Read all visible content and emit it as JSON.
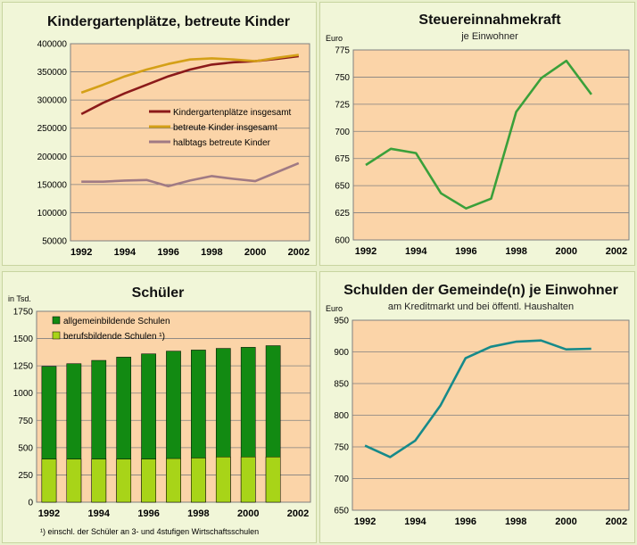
{
  "colors": {
    "plot_bg": "#fbd4a8",
    "dark_red": "#8b1a1a",
    "gold": "#d4a017",
    "mauve": "#a07a84",
    "green_line": "#3aa03a",
    "teal": "#168a8a",
    "bar_dark": "#128a12",
    "bar_light": "#a8d418"
  },
  "chart_data": [
    {
      "id": "kita",
      "type": "line",
      "title": "Kindergartenplätze, betreute Kinder",
      "ylim": [
        50000,
        400000
      ],
      "yticks": [
        "400000",
        "350000",
        "300000",
        "250000",
        "200000",
        "150000",
        "100000",
        "50000"
      ],
      "xticks": [
        "1992",
        "1994",
        "1996",
        "1998",
        "2000",
        "2002"
      ],
      "x": [
        1992,
        1993,
        1994,
        1995,
        1996,
        1997,
        1998,
        1999,
        2000,
        2001,
        2002
      ],
      "series": [
        {
          "name": "Kindergartenplätze insgesamt",
          "color": "#8b1a1a",
          "values": [
            275000,
            295000,
            312000,
            327000,
            342000,
            354000,
            363000,
            367000,
            369000,
            373000,
            378000
          ]
        },
        {
          "name": "betreute Kinder insgesamt",
          "color": "#d4a017",
          "values": [
            313000,
            327000,
            342000,
            354000,
            364000,
            372000,
            374000,
            372000,
            369000,
            375000,
            380000
          ]
        },
        {
          "name": "halbtags betreute Kinder",
          "color": "#a07a84",
          "values": [
            155000,
            155000,
            157000,
            158000,
            147000,
            157000,
            165000,
            160000,
            156000,
            172000,
            188000
          ]
        }
      ]
    },
    {
      "id": "steuer",
      "type": "line",
      "title": "Steuereinnahmekraft",
      "subtitle": "je Einwohner",
      "unit": "Euro",
      "ylim": [
        600,
        775
      ],
      "yticks": [
        "775",
        "750",
        "725",
        "700",
        "675",
        "650",
        "625",
        "600"
      ],
      "xticks": [
        "1992",
        "1994",
        "1996",
        "1998",
        "2000",
        "2002"
      ],
      "x": [
        1992,
        1993,
        1994,
        1995,
        1996,
        1997,
        1998,
        1999,
        2000,
        2001
      ],
      "series": [
        {
          "name": "Steuereinnahmekraft je Einwohner",
          "color": "#3aa03a",
          "values": [
            669,
            684,
            680,
            643,
            629,
            638,
            718,
            749,
            765,
            734
          ]
        }
      ]
    },
    {
      "id": "schueler",
      "type": "bar",
      "title": "Schüler",
      "unit": "in Tsd.",
      "ylim": [
        0,
        1750
      ],
      "yticks": [
        "1750",
        "1500",
        "1250",
        "1000",
        "750",
        "500",
        "250",
        "0"
      ],
      "xticks": [
        "1992",
        "1994",
        "1996",
        "1998",
        "2000",
        "2002"
      ],
      "footnote": "¹) einschl. der Schüler an 3- und 4stufigen Wirtschaftsschulen",
      "categories": [
        1992,
        1993,
        1994,
        1995,
        1996,
        1997,
        1998,
        1999,
        2000,
        2001
      ],
      "series": [
        {
          "name": "allgemeinbildende Schulen",
          "color": "#128a12",
          "values": [
            1245,
            1270,
            1300,
            1330,
            1360,
            1385,
            1395,
            1410,
            1420,
            1435
          ]
        },
        {
          "name": "berufsbildende Schulen ¹)",
          "color": "#a8d418",
          "values": [
            395,
            395,
            395,
            395,
            395,
            400,
            405,
            415,
            415,
            415
          ]
        }
      ]
    },
    {
      "id": "schulden",
      "type": "line",
      "title": "Schulden der Gemeinde(n) je Einwohner",
      "subtitle": "am Kreditmarkt und bei öffentl. Haushalten",
      "unit": "Euro",
      "ylim": [
        650,
        950
      ],
      "yticks": [
        "950",
        "900",
        "850",
        "800",
        "750",
        "700",
        "650"
      ],
      "xticks": [
        "1992",
        "1994",
        "1996",
        "1998",
        "2000",
        "2002"
      ],
      "x": [
        1992,
        1993,
        1994,
        1995,
        1996,
        1997,
        1998,
        1999,
        2000,
        2001
      ],
      "series": [
        {
          "name": "Schulden je Einwohner",
          "color": "#168a8a",
          "values": [
            752,
            734,
            760,
            815,
            890,
            908,
            916,
            918,
            904,
            905
          ]
        }
      ]
    }
  ]
}
